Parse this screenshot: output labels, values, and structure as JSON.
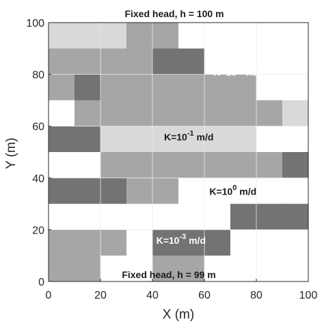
{
  "chart_data": {
    "type": "heatmap",
    "title": "Fixed head, h = 100 m",
    "bottom_label": "Fixed head, h = 99 m",
    "xlabel": "X (m)",
    "ylabel": "Y (m)",
    "xlim": [
      0,
      100
    ],
    "ylim": [
      0,
      100
    ],
    "xticks": [
      "0",
      "20",
      "40",
      "60",
      "80",
      "100"
    ],
    "yticks": [
      "0",
      "20",
      "40",
      "60",
      "80",
      "100"
    ],
    "grid": true,
    "cell_size": 10,
    "conductivity_colors": {
      "1e-3": "#737373",
      "1e-2": "#a6a6a6",
      "1e-1": "#d9d9d9",
      "1e0": "#ffffff"
    },
    "annotations": [
      {
        "base": "K=10",
        "exp": "-2",
        "unit": " m/d",
        "x": 73,
        "y": 79.5,
        "color": "white"
      },
      {
        "base": "K=10",
        "exp": "-1",
        "unit": " m/d",
        "x": 54,
        "y": 54.5,
        "color": "black"
      },
      {
        "base": "K=10",
        "exp": "0",
        "unit": " m/d",
        "x": 71,
        "y": 33.5,
        "color": "black"
      },
      {
        "base": "K=10",
        "exp": "-3",
        "unit": " m/d",
        "x": 51,
        "y": 14.5,
        "color": "white"
      }
    ],
    "rows_top_to_bottom": [
      [
        "1e-1",
        "1e-1",
        "1e-1",
        "1e-2",
        "1e-2",
        "1e0",
        "1e0",
        "1e0",
        "1e0",
        "1e0"
      ],
      [
        "1e-2",
        "1e-2",
        "1e-2",
        "1e-2",
        "1e-3",
        "1e-3",
        "1e0",
        "1e0",
        "1e0",
        "1e0"
      ],
      [
        "1e-2",
        "1e-3",
        "1e-2",
        "1e-2",
        "1e-2",
        "1e-2",
        "1e-2",
        "1e-2",
        "1e0",
        "1e0"
      ],
      [
        "1e0",
        "1e-2",
        "1e-2",
        "1e-2",
        "1e-2",
        "1e-2",
        "1e-2",
        "1e-2",
        "1e-2",
        "1e-1"
      ],
      [
        "1e-3",
        "1e-3",
        "1e-1",
        "1e-1",
        "1e-1",
        "1e-1",
        "1e-1",
        "1e-1",
        "1e0",
        "1e0"
      ],
      [
        "1e0",
        "1e0",
        "1e-2",
        "1e-2",
        "1e-2",
        "1e-2",
        "1e-2",
        "1e-2",
        "1e-2",
        "1e-3"
      ],
      [
        "1e-3",
        "1e-3",
        "1e-3",
        "1e-2",
        "1e-2",
        "1e0",
        "1e0",
        "1e0",
        "1e0",
        "1e0"
      ],
      [
        "1e0",
        "1e0",
        "1e0",
        "1e0",
        "1e0",
        "1e0",
        "1e0",
        "1e-3",
        "1e-3",
        "1e-3"
      ],
      [
        "1e-2",
        "1e-2",
        "1e-2",
        "1e0",
        "1e-3",
        "1e-3",
        "1e-3",
        "1e0",
        "1e0",
        "1e0"
      ],
      [
        "1e-2",
        "1e-2",
        "1e0",
        "1e0",
        "1e-2",
        "1e-2",
        "1e0",
        "1e0",
        "1e0",
        "1e0"
      ]
    ]
  }
}
